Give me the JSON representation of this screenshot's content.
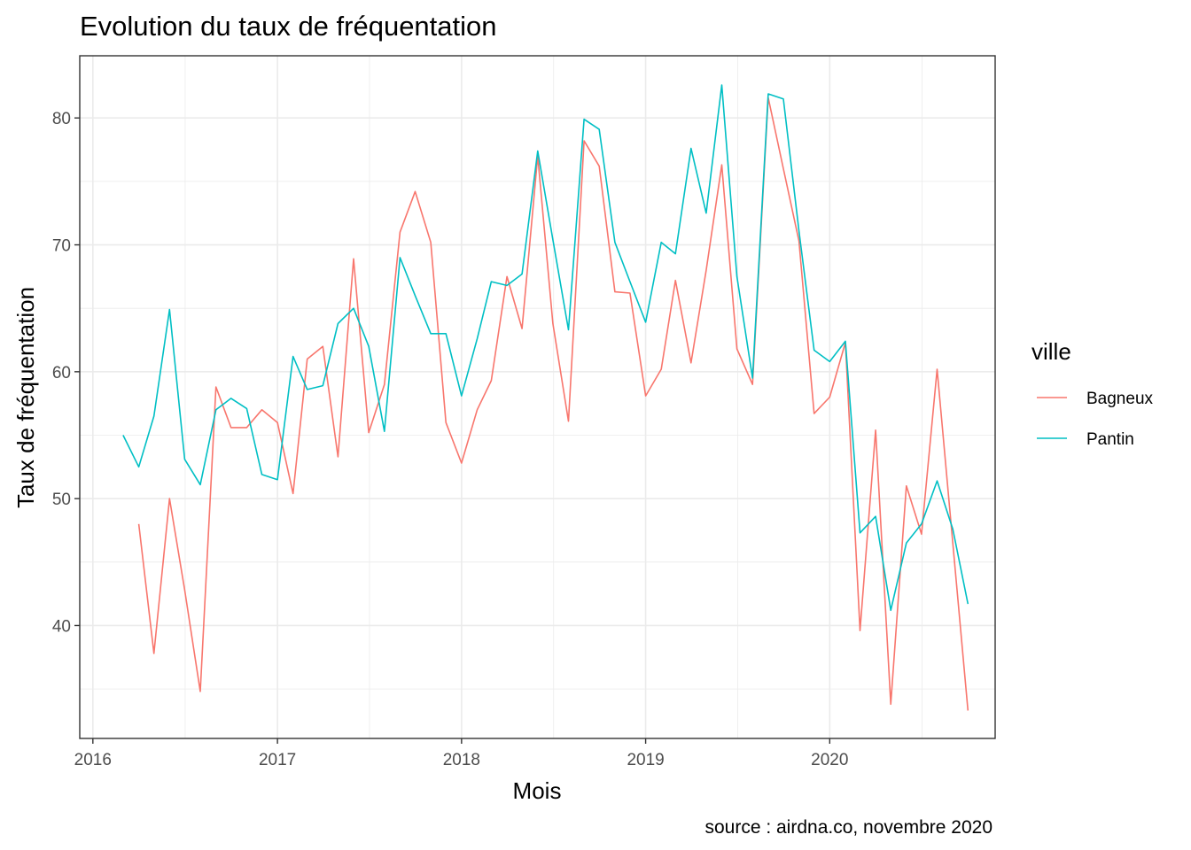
{
  "chart_data": {
    "type": "line",
    "title": "Evolution du taux de fréquentation",
    "xlabel": "Mois",
    "ylabel": "Taux de fréquentation",
    "caption": "source : airdna.co, novembre 2020",
    "x_ticks": [
      "2016",
      "2017",
      "2018",
      "2019",
      "2020"
    ],
    "y_ticks": [
      "40",
      "50",
      "60",
      "70",
      "80"
    ],
    "xlim": [
      "2015-12-06",
      "2020-11-24"
    ],
    "ylim": [
      31.1,
      84.9
    ],
    "grid": true,
    "legend": {
      "title": "ville",
      "position": "right"
    },
    "series": [
      {
        "name": "Bagneux",
        "color": "#F8766D",
        "points": [
          [
            "2016-04-01",
            48.0
          ],
          [
            "2016-05-01",
            37.8
          ],
          [
            "2016-06-01",
            50.0
          ],
          [
            "2016-07-01",
            42.8
          ],
          [
            "2016-08-01",
            34.8
          ],
          [
            "2016-09-01",
            58.8
          ],
          [
            "2016-10-01",
            55.6
          ],
          [
            "2016-11-01",
            55.6
          ],
          [
            "2016-12-01",
            57.0
          ],
          [
            "2017-01-01",
            56.0
          ],
          [
            "2017-02-01",
            50.4
          ],
          [
            "2017-03-01",
            61.0
          ],
          [
            "2017-04-01",
            62.0
          ],
          [
            "2017-05-01",
            53.3
          ],
          [
            "2017-06-01",
            68.9
          ],
          [
            "2017-07-01",
            55.2
          ],
          [
            "2017-08-01",
            59.0
          ],
          [
            "2017-09-01",
            71.0
          ],
          [
            "2017-10-01",
            74.2
          ],
          [
            "2017-11-01",
            70.2
          ],
          [
            "2017-12-01",
            56.0
          ],
          [
            "2018-01-01",
            52.8
          ],
          [
            "2018-02-01",
            57.0
          ],
          [
            "2018-03-01",
            59.3
          ],
          [
            "2018-04-01",
            67.5
          ],
          [
            "2018-05-01",
            63.4
          ],
          [
            "2018-06-01",
            77.0
          ],
          [
            "2018-07-01",
            63.8
          ],
          [
            "2018-08-01",
            56.1
          ],
          [
            "2018-09-01",
            78.2
          ],
          [
            "2018-10-01",
            76.2
          ],
          [
            "2018-11-01",
            66.3
          ],
          [
            "2018-12-01",
            66.2
          ],
          [
            "2019-01-01",
            58.1
          ],
          [
            "2019-02-01",
            60.2
          ],
          [
            "2019-03-01",
            67.2
          ],
          [
            "2019-04-01",
            60.7
          ],
          [
            "2019-05-01",
            68.0
          ],
          [
            "2019-06-01",
            76.3
          ],
          [
            "2019-07-01",
            61.8
          ],
          [
            "2019-08-01",
            59.0
          ],
          [
            "2019-09-01",
            81.6
          ],
          [
            "2019-10-01",
            76.0
          ],
          [
            "2019-11-01",
            70.3
          ],
          [
            "2019-12-01",
            56.7
          ],
          [
            "2020-01-01",
            58.0
          ],
          [
            "2020-02-01",
            62.3
          ],
          [
            "2020-03-01",
            39.6
          ],
          [
            "2020-04-01",
            55.4
          ],
          [
            "2020-05-01",
            33.8
          ],
          [
            "2020-06-01",
            51.0
          ],
          [
            "2020-07-01",
            47.2
          ],
          [
            "2020-08-01",
            60.2
          ],
          [
            "2020-09-01",
            46.5
          ],
          [
            "2020-10-01",
            33.3
          ]
        ]
      },
      {
        "name": "Pantin",
        "color": "#00BFC4",
        "points": [
          [
            "2016-03-01",
            55.0
          ],
          [
            "2016-04-01",
            52.5
          ],
          [
            "2016-05-01",
            56.5
          ],
          [
            "2016-06-01",
            64.9
          ],
          [
            "2016-07-01",
            53.1
          ],
          [
            "2016-08-01",
            51.1
          ],
          [
            "2016-09-01",
            57.0
          ],
          [
            "2016-10-01",
            57.9
          ],
          [
            "2016-11-01",
            57.1
          ],
          [
            "2016-12-01",
            51.9
          ],
          [
            "2017-01-01",
            51.5
          ],
          [
            "2017-02-01",
            61.2
          ],
          [
            "2017-03-01",
            58.6
          ],
          [
            "2017-04-01",
            58.9
          ],
          [
            "2017-05-01",
            63.8
          ],
          [
            "2017-06-01",
            65.0
          ],
          [
            "2017-07-01",
            62.0
          ],
          [
            "2017-08-01",
            55.3
          ],
          [
            "2017-09-01",
            69.0
          ],
          [
            "2017-10-01",
            66.0
          ],
          [
            "2017-11-01",
            63.0
          ],
          [
            "2017-12-01",
            63.0
          ],
          [
            "2018-01-01",
            58.1
          ],
          [
            "2018-02-01",
            62.6
          ],
          [
            "2018-03-01",
            67.1
          ],
          [
            "2018-04-01",
            66.8
          ],
          [
            "2018-05-01",
            67.7
          ],
          [
            "2018-06-01",
            77.4
          ],
          [
            "2018-07-01",
            70.4
          ],
          [
            "2018-08-01",
            63.3
          ],
          [
            "2018-09-01",
            79.9
          ],
          [
            "2018-10-01",
            79.1
          ],
          [
            "2018-11-01",
            70.2
          ],
          [
            "2018-12-01",
            67.1
          ],
          [
            "2019-01-01",
            63.9
          ],
          [
            "2019-02-01",
            70.2
          ],
          [
            "2019-03-01",
            69.3
          ],
          [
            "2019-04-01",
            77.6
          ],
          [
            "2019-05-01",
            72.5
          ],
          [
            "2019-06-01",
            82.6
          ],
          [
            "2019-07-01",
            67.5
          ],
          [
            "2019-08-01",
            59.5
          ],
          [
            "2019-09-01",
            81.9
          ],
          [
            "2019-10-01",
            81.5
          ],
          [
            "2019-11-01",
            71.1
          ],
          [
            "2019-12-01",
            61.7
          ],
          [
            "2020-01-01",
            60.8
          ],
          [
            "2020-02-01",
            62.4
          ],
          [
            "2020-03-01",
            47.3
          ],
          [
            "2020-04-01",
            48.6
          ],
          [
            "2020-05-01",
            41.2
          ],
          [
            "2020-06-01",
            46.5
          ],
          [
            "2020-07-01",
            48.0
          ],
          [
            "2020-08-01",
            51.4
          ],
          [
            "2020-09-01",
            47.6
          ],
          [
            "2020-10-01",
            41.7
          ]
        ]
      }
    ]
  }
}
